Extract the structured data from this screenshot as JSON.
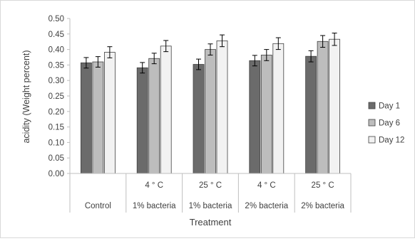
{
  "chart_data": {
    "type": "bar",
    "ylabel": "acidity (Weight percent)",
    "xlabel": "Treatment",
    "ylim": [
      0,
      0.5
    ],
    "yticks": [
      "0.00",
      "0.05",
      "0.10",
      "0.15",
      "0.20",
      "0.25",
      "0.30",
      "0.35",
      "0.40",
      "0.45",
      "0.50"
    ],
    "grid": false,
    "legend_position": "right",
    "categories": [
      {
        "top": "",
        "bottom": "Control"
      },
      {
        "top": "4 ° C",
        "bottom": "1% bacteria"
      },
      {
        "top": "25 ° C",
        "bottom": "1% bacteria"
      },
      {
        "top": "4 ° C",
        "bottom": "2% bacteria"
      },
      {
        "top": "25 ° C",
        "bottom": "2% bacteria"
      }
    ],
    "series": [
      {
        "name": "Day 1",
        "color": "#6b6b6b",
        "values": [
          0.357,
          0.341,
          0.352,
          0.364,
          0.378
        ],
        "errors": [
          0.017,
          0.017,
          0.017,
          0.017,
          0.018
        ]
      },
      {
        "name": "Day 6",
        "color": "#bdbdbd",
        "values": [
          0.36,
          0.371,
          0.4,
          0.382,
          0.426
        ],
        "errors": [
          0.017,
          0.017,
          0.018,
          0.018,
          0.019
        ]
      },
      {
        "name": "Day 12",
        "color": "#f2f2f2",
        "values": [
          0.391,
          0.411,
          0.428,
          0.419,
          0.433
        ],
        "errors": [
          0.018,
          0.018,
          0.019,
          0.019,
          0.02
        ]
      }
    ]
  }
}
